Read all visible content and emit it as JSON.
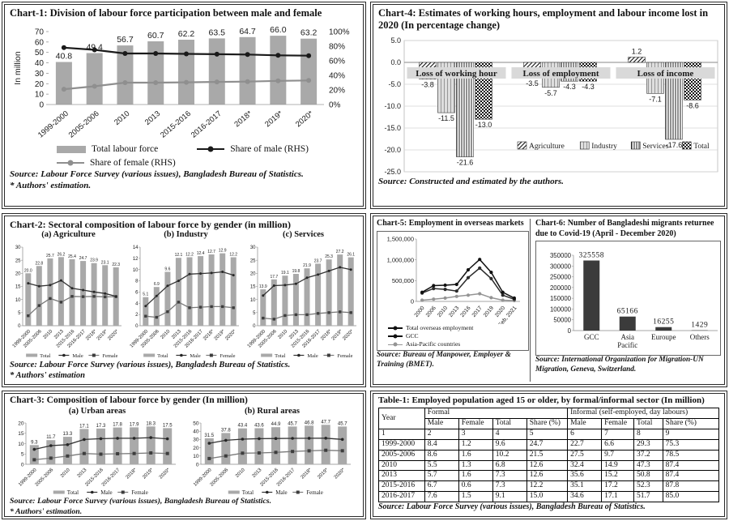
{
  "chart_data": [
    {
      "id": "chart1",
      "type": "bar",
      "title": "Chart-1: Division of labour force participation between male and female",
      "ylabel": "In million",
      "categories": [
        "1999-2000",
        "2005-2006",
        "2010",
        "2013",
        "2015-2016",
        "2016-2017",
        "2018*",
        "2019*",
        "2020*"
      ],
      "bars": {
        "name": "Total labour force",
        "values": [
          40.8,
          49.4,
          56.7,
          60.7,
          62.2,
          63.5,
          64.7,
          66.0,
          63.2
        ],
        "color": "#a9a9a9"
      },
      "lines": [
        {
          "name": "Share of male (RHS)",
          "values": [
            78,
            75,
            70,
            70,
            69.5,
            69,
            68.5,
            67.5,
            67
          ],
          "color": "#1a1a1a"
        },
        {
          "name": "Share of female (RHS)",
          "values": [
            21,
            25,
            30,
            30,
            30.5,
            31,
            31.5,
            32.5,
            33
          ],
          "color": "#8f8f8f"
        }
      ],
      "ylim": [
        0,
        70
      ],
      "yticks": [
        0,
        10,
        20,
        30,
        40,
        50,
        60,
        70
      ],
      "y2lim": [
        0,
        100
      ],
      "y2ticks": [
        "0%",
        "20%",
        "40%",
        "60%",
        "80%",
        "100%"
      ],
      "source": "Source: Labour Force Survey (various issues), Bangladesh Bureau of Statistics.",
      "note": "* Authors' estimation."
    },
    {
      "id": "chart4",
      "type": "bar",
      "title": "Chart-4: Estimates of working hours, employment and labour income lost in 2020 (In percentage change)",
      "groups": [
        "Loss of working hour",
        "Loss of employment",
        "Loss of income"
      ],
      "series": [
        {
          "name": "Agriculture",
          "values": [
            -3.8,
            -3.5,
            1.2
          ],
          "pattern": "diag"
        },
        {
          "name": "Industry",
          "values": [
            -11.5,
            -5.7,
            -7.1
          ],
          "pattern": "lightv"
        },
        {
          "name": "Services",
          "values": [
            -21.6,
            -4.3,
            -17.6
          ],
          "pattern": "vlines"
        },
        {
          "name": "Total",
          "values": [
            -13.0,
            -4.3,
            -8.6
          ],
          "pattern": "dots"
        }
      ],
      "ylim": [
        -25,
        5
      ],
      "yticks": [
        5,
        0,
        -5,
        -10,
        -15,
        -20,
        -25
      ],
      "source": "Source: Constructed and estimated by the authors."
    },
    {
      "id": "chart2",
      "type": "bar",
      "title": "Chart-2: Sectoral composition of labour force by gender (in million)",
      "categories": [
        "1999-2000",
        "2005-2006",
        "2010",
        "2013",
        "2015-2016",
        "2016-2017",
        "2018*",
        "2019*",
        "2020*"
      ],
      "legend": [
        "Total",
        "Male",
        "Female"
      ],
      "panels": [
        {
          "label": "(a) Agriculture",
          "ylim": [
            0,
            30
          ],
          "yticks": [
            0,
            5,
            10,
            15,
            20,
            25,
            30
          ],
          "total": [
            20.0,
            22.8,
            25.7,
            26.2,
            25.4,
            24.7,
            23.9,
            23.1,
            22.3
          ],
          "male": [
            16.2,
            15.1,
            15.5,
            17.3,
            14.3,
            13.6,
            12.9,
            12.3,
            11.2
          ],
          "female": [
            3.8,
            7.7,
            10.4,
            9.0,
            11.2,
            11.1,
            11.2,
            11.0,
            11.1
          ]
        },
        {
          "label": "(b) Industry",
          "ylim": [
            0,
            14
          ],
          "yticks": [
            0,
            2,
            4,
            6,
            8,
            10,
            12,
            14
          ],
          "total": [
            5.1,
            6.9,
            9.6,
            12.1,
            12.2,
            12.4,
            12.7,
            12.9,
            12.2
          ],
          "male": [
            3.5,
            5.3,
            7.1,
            8.0,
            9.2,
            9.3,
            9.4,
            9.6,
            9.0
          ],
          "female": [
            1.7,
            1.5,
            2.5,
            4.2,
            3.2,
            3.3,
            3.4,
            3.4,
            3.2
          ]
        },
        {
          "label": "(c) Services",
          "ylim": [
            0,
            30
          ],
          "yticks": [
            0,
            5,
            10,
            15,
            20,
            25,
            30
          ],
          "total": [
            13.9,
            17.7,
            19.1,
            19.8,
            21.9,
            23.7,
            25.3,
            27.2,
            26.1
          ],
          "male": [
            11.5,
            15.3,
            15.5,
            16.0,
            18.3,
            19.5,
            20.9,
            22.3,
            21.4
          ],
          "female": [
            2.9,
            2.5,
            3.9,
            4.2,
            4.2,
            4.7,
            5.0,
            5.3,
            5.0
          ]
        }
      ],
      "source": "Source: Labour Force Survey (various issues), Bangladesh Bureau of Statistics.",
      "note": "* Authors' estimation"
    },
    {
      "id": "chart5",
      "type": "line",
      "title": "Chart-5: Employment in overseas markets",
      "x": [
        "2000",
        "2006",
        "2010",
        "2013",
        "2016",
        "2017",
        "2019",
        "2020",
        "Feb, 2021"
      ],
      "series": [
        {
          "name": "Total overseas employment",
          "values": [
            220000,
            380000,
            390000,
            410000,
            760000,
            1010000,
            700000,
            220000,
            80000
          ],
          "color": "#111111"
        },
        {
          "name": "GCC",
          "values": [
            200000,
            310000,
            290000,
            250000,
            570000,
            800000,
            550000,
            150000,
            50000
          ],
          "color": "#2b2b2b"
        },
        {
          "name": "Asia-Pacific countries",
          "values": [
            30000,
            55000,
            80000,
            120000,
            150000,
            185000,
            90000,
            30000,
            20000
          ],
          "color": "#949494"
        }
      ],
      "ylim": [
        0,
        1500000
      ],
      "yticks": [
        "0",
        "500,000",
        "1,000,000",
        "1,500,000"
      ],
      "source": "Source: Bureau of Manpower, Employer & Training (BMET)."
    },
    {
      "id": "chart6",
      "type": "bar",
      "title": "Chart-6: Number of Bangladeshi migrants returnee due to Covid-19 (April - December 2020)",
      "categories": [
        "GCC",
        "Asia Pacific",
        "Euroupe",
        "Others"
      ],
      "cat_lines": [
        [
          "GCC"
        ],
        [
          "Asia",
          "Pacific"
        ],
        [
          "Euroupe"
        ],
        [
          "Others"
        ]
      ],
      "values": [
        325558,
        65166,
        16255,
        1429
      ],
      "labels": [
        "325558",
        "65166",
        "16255",
        "1429"
      ],
      "bar_color": "#3b3b3b",
      "ylim": [
        0,
        350000
      ],
      "yticks": [
        0,
        50000,
        100000,
        150000,
        200000,
        250000,
        300000,
        350000
      ],
      "source": "Source: International Organization for Migration-UN Migration, Geneva, Switzerland."
    },
    {
      "id": "chart3",
      "type": "bar",
      "title": "Chart-3: Composition of labour force by gender (In million)",
      "categories": [
        "1999-2000",
        "2005-2006",
        "2010",
        "2013",
        "2015-2016",
        "2016-2017",
        "2018*",
        "2019*",
        "2020*"
      ],
      "legend": [
        "Total",
        "Male",
        "Female"
      ],
      "panels": [
        {
          "label": "(a) Urban areas",
          "ylim": [
            0,
            20
          ],
          "yticks": [
            0,
            5,
            10,
            15,
            20
          ],
          "total": [
            9.3,
            11.7,
            13.3,
            17.1,
            17.3,
            17.8,
            17.9,
            18.3,
            17.5
          ],
          "male": [
            7.2,
            9.0,
            9.5,
            12.0,
            12.4,
            12.6,
            12.6,
            12.9,
            12.3
          ],
          "female": [
            2.2,
            3.0,
            4.0,
            5.2,
            4.9,
            5.1,
            5.2,
            5.5,
            5.2
          ]
        },
        {
          "label": "(b) Rural areas",
          "ylim": [
            0,
            50
          ],
          "yticks": [
            0,
            10,
            20,
            30,
            40,
            50
          ],
          "total": [
            31.5,
            37.8,
            43.4,
            43.6,
            44.9,
            45.7,
            46.8,
            47.7,
            45.7
          ],
          "male": [
            25.4,
            29.0,
            30.4,
            31.0,
            31.2,
            31.4,
            31.5,
            31.6,
            30.1
          ],
          "female": [
            7.0,
            10.1,
            13.4,
            13.7,
            14.4,
            15.5,
            16.3,
            17.0,
            16.4
          ]
        }
      ],
      "source": "Source: Labour Force Survey (various issues), Bangladesh Bureau of Statistics.",
      "note": "* Authors' estimation."
    }
  ],
  "table1": {
    "title": "Table-1: Employed population aged 15 or older, by formal/informal sector (In million)",
    "year_header": "Year",
    "group_headers": [
      "Formal",
      "Informal (self-employed, day labours)"
    ],
    "sub_headers": [
      "Male",
      "Female",
      "Total",
      "Share (%)"
    ],
    "col_numbers": [
      "1",
      "2",
      "3",
      "4",
      "5",
      "6",
      "7",
      "8",
      "9"
    ],
    "rows": [
      [
        "1999-2000",
        "8.4",
        "1.2",
        "9.6",
        "24.7",
        "22.7",
        "6.6",
        "29.3",
        "75.3"
      ],
      [
        "2005-2006",
        "8.6",
        "1.6",
        "10.2",
        "21.5",
        "27.5",
        "9.7",
        "37.2",
        "78.5"
      ],
      [
        "2010",
        "5.5",
        "1.3",
        "6.8",
        "12.6",
        "32.4",
        "14.9",
        "47.3",
        "87.4"
      ],
      [
        "2013",
        "5.7",
        "1.6",
        "7.3",
        "12.6",
        "35.6",
        "15.2",
        "50.8",
        "87.4"
      ],
      [
        "2015-2016",
        "6.7",
        "0.6",
        "7.3",
        "12.2",
        "35.1",
        "17.2",
        "52.3",
        "87.8"
      ],
      [
        "2016-2017",
        "7.6",
        "1.5",
        "9.1",
        "15.0",
        "34.6",
        "17.1",
        "51.7",
        "85.0"
      ]
    ],
    "source": "Source: Labour Force Survey (various issues), Bangladesh Bureau of Statistics."
  }
}
